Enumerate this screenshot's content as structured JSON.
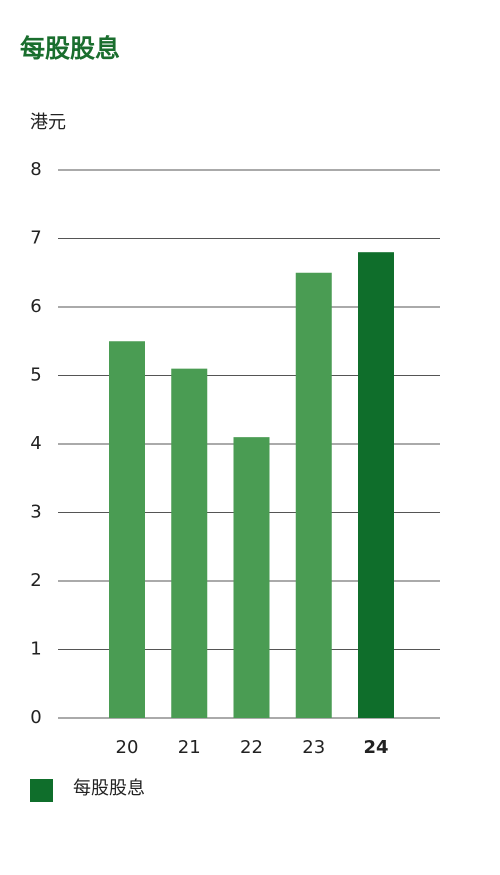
{
  "chart_data": {
    "type": "bar",
    "title": "每股股息",
    "y_label": "港元",
    "categories": [
      "20",
      "21",
      "22",
      "23",
      "24"
    ],
    "series": [
      {
        "name": "每股股息",
        "color": "#0f6e2b",
        "values": [
          5.5,
          5.1,
          4.1,
          6.5,
          6.8
        ]
      }
    ],
    "bar_colors": [
      "#4a9c53",
      "#4a9c53",
      "#4a9c53",
      "#4a9c53",
      "#0f6e2b"
    ],
    "ylim": [
      0,
      8
    ],
    "yticks": [
      0,
      1,
      2,
      3,
      4,
      5,
      6,
      7,
      8
    ],
    "grid": true
  }
}
